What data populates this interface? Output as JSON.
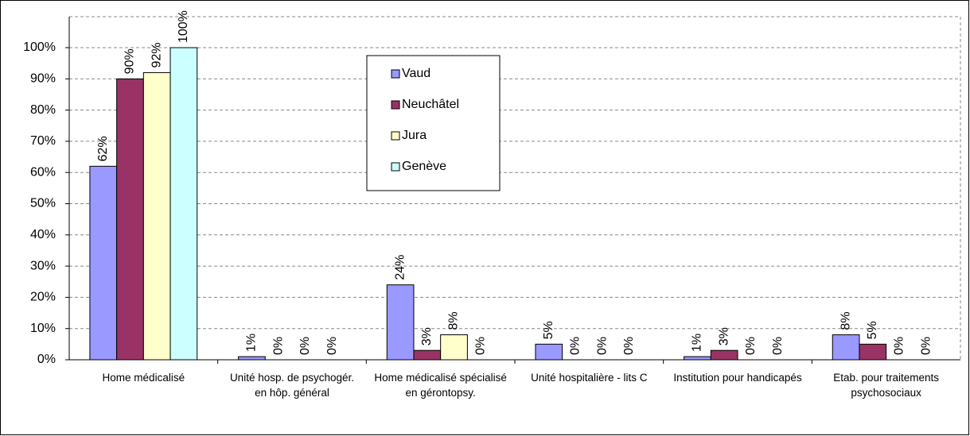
{
  "chart_data": {
    "type": "bar",
    "categories": [
      "Home médicalisé",
      "Unité hosp. de psychogér. en hôp. général",
      "Home médicalisé spécialisé en gérontopsy.",
      "Unité hospitalière - lits C",
      "Institution pour handicapés",
      "Etab. pour traitements psychosociaux"
    ],
    "series": [
      {
        "name": "Vaud",
        "color": "#9999ff",
        "values": [
          62,
          1,
          24,
          5,
          1,
          8
        ],
        "value_labels": [
          "62%",
          "1%",
          "24%",
          "5%",
          "1%",
          "8%"
        ]
      },
      {
        "name": "Neuchâtel",
        "color": "#993366",
        "values": [
          90,
          0,
          3,
          0,
          3,
          5
        ],
        "value_labels": [
          "90%",
          "0%",
          "3%",
          "0%",
          "3%",
          "5%"
        ]
      },
      {
        "name": "Jura",
        "color": "#ffffcc",
        "values": [
          92,
          0,
          8,
          0,
          0,
          0
        ],
        "value_labels": [
          "92%",
          "0%",
          "8%",
          "0%",
          "0%",
          "0%"
        ]
      },
      {
        "name": "Genève",
        "color": "#ccffff",
        "values": [
          100,
          0,
          0,
          0,
          0,
          0
        ],
        "value_labels": [
          "100%",
          "0%",
          "0%",
          "0%",
          "0%",
          "0%"
        ]
      }
    ],
    "ylim": [
      0,
      100
    ],
    "yticks": [
      {
        "value": 0,
        "label": "0%"
      },
      {
        "value": 10,
        "label": "10%"
      },
      {
        "value": 20,
        "label": "20%"
      },
      {
        "value": 30,
        "label": "30%"
      },
      {
        "value": 40,
        "label": "40%"
      },
      {
        "value": 50,
        "label": "50%"
      },
      {
        "value": 60,
        "label": "60%"
      },
      {
        "value": 70,
        "label": "70%"
      },
      {
        "value": 80,
        "label": "80%"
      },
      {
        "value": 90,
        "label": "90%"
      },
      {
        "value": 100,
        "label": "100%"
      }
    ],
    "grid": true
  }
}
